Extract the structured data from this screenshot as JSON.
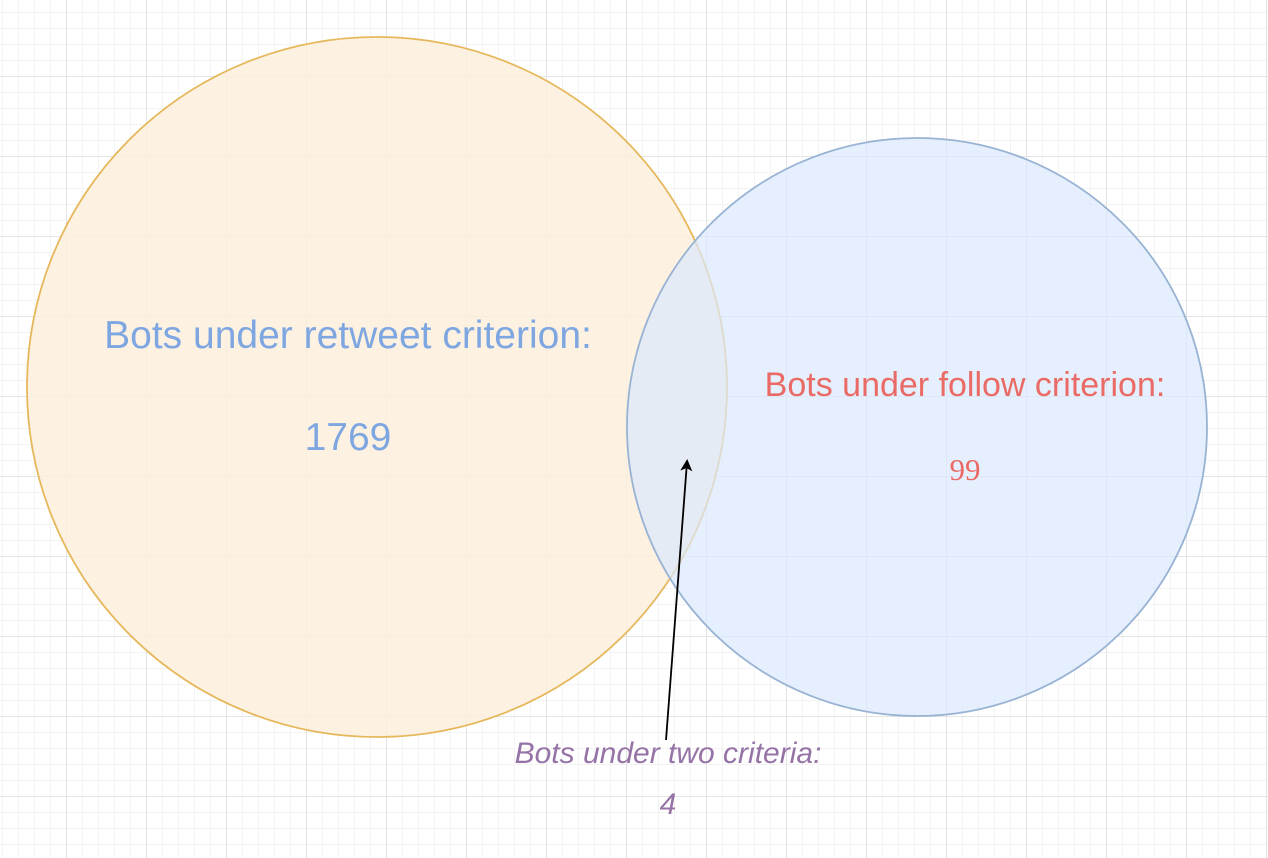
{
  "venn": {
    "retweet": {
      "label": "Bots under retweet criterion:",
      "count": "1769",
      "fill": "#fdeedd",
      "stroke": "#e6b85c",
      "text_color": "#7ea6e0"
    },
    "follow": {
      "label": "Bots under follow criterion:",
      "count": "99",
      "fill": "#dae8fc",
      "stroke": "#98b3d3",
      "text_color": "#ea6b66"
    },
    "overlap": {
      "label": "Bots under two criteria:",
      "count": "4",
      "text_color": "#9673a6"
    }
  }
}
